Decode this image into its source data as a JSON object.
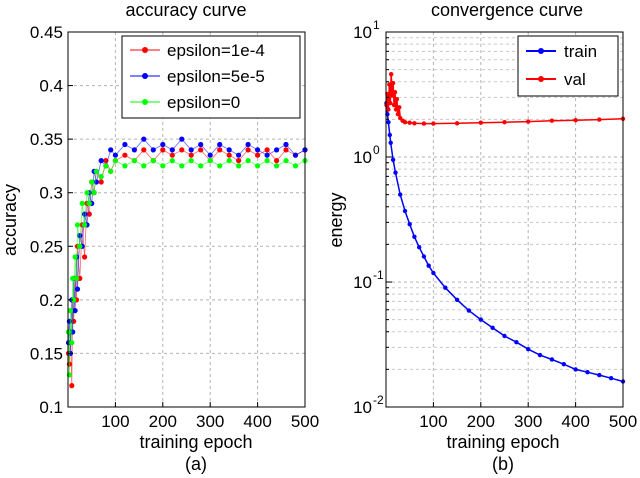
{
  "chart_data": [
    {
      "type": "scatter",
      "panel_label": "(a)",
      "title": "accuracy curve",
      "xlabel": "training epoch",
      "ylabel": "accuracy",
      "xlim": [
        0,
        500
      ],
      "ylim": [
        0.1,
        0.45
      ],
      "xticks": [
        "100",
        "200",
        "300",
        "400",
        "500"
      ],
      "xtick_values": [
        100,
        200,
        300,
        400,
        500
      ],
      "yticks": [
        "0.1",
        "0.15",
        "0.2",
        "0.25",
        "0.3",
        "0.35",
        "0.4",
        "0.45"
      ],
      "ytick_values": [
        0.1,
        0.15,
        0.2,
        0.25,
        0.3,
        0.35,
        0.4,
        0.45
      ],
      "grid": true,
      "legend_position": "top-right",
      "series": [
        {
          "name": "epsilon=1e-4",
          "color": "#ff0000",
          "points": [
            [
              1,
              0.15
            ],
            [
              3,
              0.14
            ],
            [
              5,
              0.17
            ],
            [
              8,
              0.12
            ],
            [
              10,
              0.2
            ],
            [
              12,
              0.18
            ],
            [
              15,
              0.22
            ],
            [
              18,
              0.2
            ],
            [
              20,
              0.25
            ],
            [
              25,
              0.22
            ],
            [
              30,
              0.27
            ],
            [
              35,
              0.24
            ],
            [
              40,
              0.29
            ],
            [
              45,
              0.28
            ],
            [
              50,
              0.31
            ],
            [
              55,
              0.3
            ],
            [
              60,
              0.32
            ],
            [
              70,
              0.31
            ],
            [
              80,
              0.33
            ],
            [
              90,
              0.32
            ],
            [
              100,
              0.33
            ],
            [
              120,
              0.335
            ],
            [
              140,
              0.33
            ],
            [
              160,
              0.34
            ],
            [
              180,
              0.33
            ],
            [
              200,
              0.34
            ],
            [
              220,
              0.335
            ],
            [
              240,
              0.34
            ],
            [
              260,
              0.335
            ],
            [
              280,
              0.34
            ],
            [
              300,
              0.33
            ],
            [
              320,
              0.34
            ],
            [
              340,
              0.335
            ],
            [
              360,
              0.33
            ],
            [
              380,
              0.34
            ],
            [
              400,
              0.335
            ],
            [
              420,
              0.34
            ],
            [
              440,
              0.33
            ],
            [
              460,
              0.34
            ],
            [
              480,
              0.335
            ],
            [
              500,
              0.34
            ]
          ]
        },
        {
          "name": "epsilon=5e-5",
          "color": "#0000ff",
          "points": [
            [
              1,
              0.16
            ],
            [
              3,
              0.18
            ],
            [
              5,
              0.15
            ],
            [
              8,
              0.2
            ],
            [
              10,
              0.17
            ],
            [
              12,
              0.22
            ],
            [
              15,
              0.19
            ],
            [
              18,
              0.24
            ],
            [
              20,
              0.21
            ],
            [
              25,
              0.26
            ],
            [
              30,
              0.25
            ],
            [
              35,
              0.28
            ],
            [
              40,
              0.27
            ],
            [
              45,
              0.3
            ],
            [
              50,
              0.29
            ],
            [
              55,
              0.32
            ],
            [
              60,
              0.31
            ],
            [
              70,
              0.33
            ],
            [
              80,
              0.325
            ],
            [
              90,
              0.34
            ],
            [
              100,
              0.335
            ],
            [
              120,
              0.345
            ],
            [
              140,
              0.34
            ],
            [
              160,
              0.35
            ],
            [
              180,
              0.34
            ],
            [
              200,
              0.345
            ],
            [
              220,
              0.34
            ],
            [
              240,
              0.35
            ],
            [
              260,
              0.34
            ],
            [
              280,
              0.345
            ],
            [
              300,
              0.335
            ],
            [
              320,
              0.345
            ],
            [
              340,
              0.34
            ],
            [
              360,
              0.335
            ],
            [
              380,
              0.345
            ],
            [
              400,
              0.34
            ],
            [
              420,
              0.335
            ],
            [
              440,
              0.34
            ],
            [
              460,
              0.345
            ],
            [
              480,
              0.335
            ],
            [
              500,
              0.34
            ]
          ]
        },
        {
          "name": "epsilon=0",
          "color": "#00ff00",
          "points": [
            [
              1,
              0.17
            ],
            [
              3,
              0.13
            ],
            [
              5,
              0.19
            ],
            [
              8,
              0.16
            ],
            [
              10,
              0.22
            ],
            [
              12,
              0.2
            ],
            [
              15,
              0.24
            ],
            [
              18,
              0.22
            ],
            [
              20,
              0.27
            ],
            [
              25,
              0.25
            ],
            [
              30,
              0.29
            ],
            [
              35,
              0.27
            ],
            [
              40,
              0.3
            ],
            [
              45,
              0.29
            ],
            [
              50,
              0.31
            ],
            [
              55,
              0.3
            ],
            [
              60,
              0.32
            ],
            [
              70,
              0.315
            ],
            [
              80,
              0.325
            ],
            [
              90,
              0.32
            ],
            [
              100,
              0.33
            ],
            [
              120,
              0.325
            ],
            [
              140,
              0.33
            ],
            [
              160,
              0.325
            ],
            [
              180,
              0.33
            ],
            [
              200,
              0.325
            ],
            [
              220,
              0.33
            ],
            [
              240,
              0.325
            ],
            [
              260,
              0.33
            ],
            [
              280,
              0.325
            ],
            [
              300,
              0.33
            ],
            [
              320,
              0.325
            ],
            [
              340,
              0.33
            ],
            [
              360,
              0.325
            ],
            [
              380,
              0.33
            ],
            [
              400,
              0.325
            ],
            [
              420,
              0.33
            ],
            [
              440,
              0.325
            ],
            [
              460,
              0.33
            ],
            [
              480,
              0.325
            ],
            [
              500,
              0.33
            ]
          ]
        }
      ]
    },
    {
      "type": "line",
      "panel_label": "(b)",
      "title": "convergence curve",
      "xlabel": "training epoch",
      "ylabel": "energy",
      "yscale": "log",
      "xlim": [
        0,
        500
      ],
      "ylim": [
        0.01,
        10
      ],
      "xticks": [
        "100",
        "200",
        "300",
        "400",
        "500"
      ],
      "xtick_values": [
        100,
        200,
        300,
        400,
        500
      ],
      "yticks": [
        {
          "base": "10",
          "exp": "-2",
          "value": 0.01
        },
        {
          "base": "10",
          "exp": "-1",
          "value": 0.1
        },
        {
          "base": "10",
          "exp": "0",
          "value": 1
        },
        {
          "base": "10",
          "exp": "1",
          "value": 10
        }
      ],
      "grid": true,
      "legend_position": "top-right",
      "series": [
        {
          "name": "train",
          "color": "#0000ff",
          "points": [
            [
              1,
              2.7
            ],
            [
              3,
              2.2
            ],
            [
              5,
              1.9
            ],
            [
              8,
              1.5
            ],
            [
              10,
              1.3
            ],
            [
              15,
              0.95
            ],
            [
              20,
              0.75
            ],
            [
              30,
              0.5
            ],
            [
              40,
              0.37
            ],
            [
              50,
              0.29
            ],
            [
              60,
              0.23
            ],
            [
              70,
              0.19
            ],
            [
              80,
              0.16
            ],
            [
              90,
              0.135
            ],
            [
              100,
              0.118
            ],
            [
              125,
              0.09
            ],
            [
              150,
              0.072
            ],
            [
              175,
              0.059
            ],
            [
              200,
              0.05
            ],
            [
              225,
              0.043
            ],
            [
              250,
              0.037
            ],
            [
              275,
              0.033
            ],
            [
              300,
              0.029
            ],
            [
              325,
              0.026
            ],
            [
              350,
              0.024
            ],
            [
              375,
              0.022
            ],
            [
              400,
              0.02
            ],
            [
              425,
              0.019
            ],
            [
              450,
              0.018
            ],
            [
              475,
              0.017
            ],
            [
              500,
              0.016
            ]
          ]
        },
        {
          "name": "val",
          "color": "#ff0000",
          "points": [
            [
              1,
              2.6
            ],
            [
              3,
              3.2
            ],
            [
              5,
              2.4
            ],
            [
              7,
              3.8
            ],
            [
              9,
              2.7
            ],
            [
              11,
              4.6
            ],
            [
              13,
              3.1
            ],
            [
              15,
              3.9
            ],
            [
              17,
              2.6
            ],
            [
              19,
              3.3
            ],
            [
              21,
              2.4
            ],
            [
              23,
              2.9
            ],
            [
              25,
              2.2
            ],
            [
              28,
              2.5
            ],
            [
              30,
              2.05
            ],
            [
              35,
              1.95
            ],
            [
              40,
              1.9
            ],
            [
              50,
              1.88
            ],
            [
              60,
              1.86
            ],
            [
              80,
              1.85
            ],
            [
              100,
              1.85
            ],
            [
              150,
              1.86
            ],
            [
              200,
              1.88
            ],
            [
              250,
              1.9
            ],
            [
              300,
              1.92
            ],
            [
              350,
              1.95
            ],
            [
              400,
              1.97
            ],
            [
              450,
              1.99
            ],
            [
              500,
              2.02
            ]
          ]
        }
      ]
    }
  ]
}
